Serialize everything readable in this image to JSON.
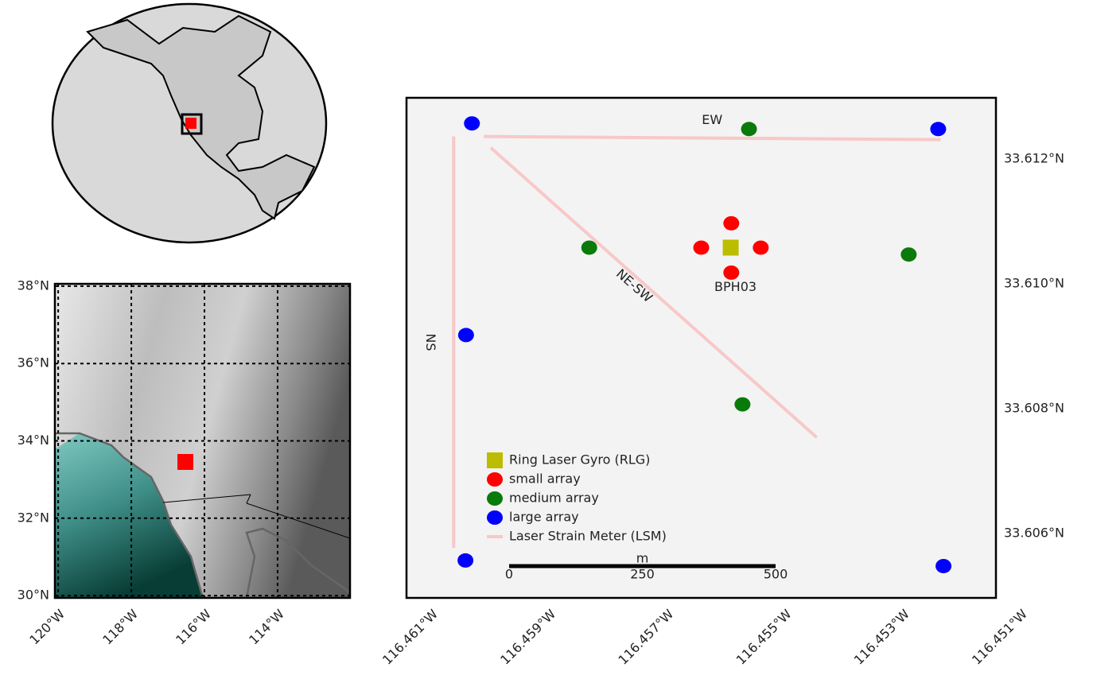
{
  "region_map": {
    "xlim": [
      -120.09,
      -112.02
    ],
    "ylim": [
      29.94,
      38.06
    ],
    "xticks": [
      {
        "value": -120,
        "label": "120°W"
      },
      {
        "value": -118,
        "label": "118°W"
      },
      {
        "value": -116,
        "label": "116°W"
      },
      {
        "value": -114,
        "label": "114°W"
      }
    ],
    "yticks": [
      {
        "value": 38,
        "label": "38°N"
      },
      {
        "value": 36,
        "label": "36°N"
      },
      {
        "value": 34,
        "label": "34°N"
      },
      {
        "value": 32,
        "label": "32°N"
      },
      {
        "value": 30,
        "label": "30°N"
      }
    ],
    "grid": true
  },
  "chart_data": {
    "type": "scatter",
    "xlim": [
      -116.4615,
      -116.4515
    ],
    "ylim": [
      33.60497,
      33.61298
    ],
    "xticks": [
      {
        "value": -116.461,
        "label": "116.461°W"
      },
      {
        "value": -116.459,
        "label": "116.459°W"
      },
      {
        "value": -116.457,
        "label": "116.457°W"
      },
      {
        "value": -116.455,
        "label": "116.455°W"
      },
      {
        "value": -116.453,
        "label": "116.453°W"
      },
      {
        "value": -116.451,
        "label": "116.451°W"
      }
    ],
    "yticks": [
      {
        "value": 33.612,
        "label": "33.612°N"
      },
      {
        "value": 33.61,
        "label": "33.610°N"
      },
      {
        "value": 33.608,
        "label": "33.608°N"
      },
      {
        "value": 33.606,
        "label": "33.606°N"
      }
    ],
    "series": [
      {
        "name": "Ring Laser Gyro (RLG)",
        "color": "#bcbd00",
        "marker": "square",
        "x": [
          -116.456
        ],
        "values": [
          33.61058
        ]
      },
      {
        "name": "small array",
        "color": "#ff0000",
        "marker": "circle",
        "x": [
          -116.45599,
          -116.4565,
          -116.45549,
          -116.45599
        ],
        "values": [
          33.61097,
          33.61058,
          33.61058,
          33.61018
        ]
      },
      {
        "name": "medium array",
        "color": "#0a7a0a",
        "marker": "circle",
        "x": [
          -116.45569,
          -116.4584,
          -116.45298,
          -116.4558
        ],
        "values": [
          33.61248,
          33.61058,
          33.61047,
          33.60807
        ]
      },
      {
        "name": "large array",
        "color": "#0000ff",
        "marker": "circle",
        "x": [
          -116.46039,
          -116.45248,
          -116.46049,
          -116.4605,
          -116.45239
        ],
        "values": [
          33.61257,
          33.61248,
          33.60918,
          33.60557,
          33.60548
        ]
      }
    ],
    "lsm": {
      "name": "Laser Strain Meter (LSM)",
      "color": "#f8c8c8",
      "lines": [
        {
          "label": "EW",
          "x": [
            -116.46019,
            -116.45244
          ],
          "values": [
            33.61236,
            33.61231
          ]
        },
        {
          "label": "NS",
          "x": [
            -116.4607,
            -116.4607
          ],
          "values": [
            33.61236,
            33.60577
          ]
        },
        {
          "label": "NE-SW",
          "x": [
            -116.46007,
            -116.45454
          ],
          "values": [
            33.61218,
            33.60754
          ]
        }
      ]
    },
    "station_label": "BPH03",
    "scale_bar": {
      "unit": "m",
      "ticks": [
        0,
        250,
        500
      ]
    }
  }
}
